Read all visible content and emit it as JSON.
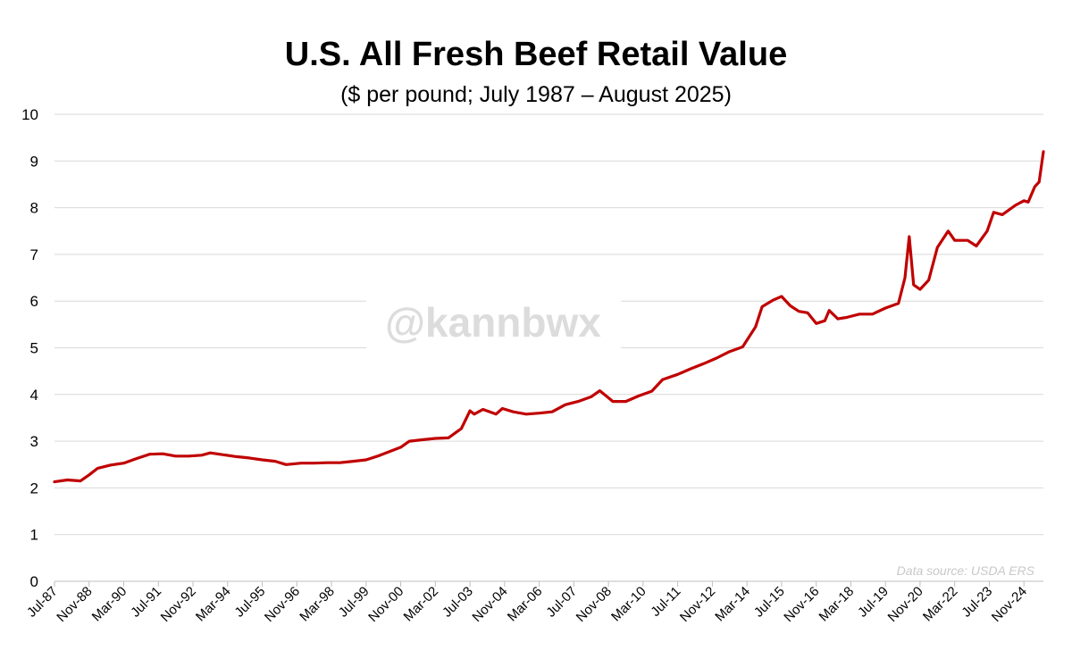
{
  "chart_data": {
    "type": "line",
    "title": "U.S. All Fresh Beef Retail Value",
    "subtitle": "($ per pound; July 1987 – August 2025)",
    "xlabel": "",
    "ylabel": "",
    "ylim": [
      0,
      10
    ],
    "yticks": [
      0,
      1,
      2,
      3,
      4,
      5,
      6,
      7,
      8,
      9,
      10
    ],
    "grid": true,
    "x_tick_labels": [
      "Jul-87",
      "Nov-88",
      "Mar-90",
      "Jul-91",
      "Nov-92",
      "Mar-94",
      "Jul-95",
      "Nov-96",
      "Mar-98",
      "Jul-99",
      "Nov-00",
      "Mar-02",
      "Jul-03",
      "Nov-04",
      "Mar-06",
      "Jul-07",
      "Nov-08",
      "Mar-10",
      "Jul-11",
      "Nov-12",
      "Mar-14",
      "Jul-15",
      "Nov-16",
      "Mar-18",
      "Jul-19",
      "Nov-20",
      "Mar-22",
      "Jul-23",
      "Nov-24"
    ],
    "x_start": "Jul-87",
    "x_end": "Aug-25",
    "series": [
      {
        "color": "#c00000",
        "points": [
          [
            "Jul-87",
            2.13
          ],
          [
            "Jan-88",
            2.17
          ],
          [
            "Jul-88",
            2.15
          ],
          [
            "Nov-88",
            2.28
          ],
          [
            "Mar-89",
            2.42
          ],
          [
            "Sep-89",
            2.49
          ],
          [
            "Mar-90",
            2.53
          ],
          [
            "Sep-90",
            2.63
          ],
          [
            "Mar-91",
            2.72
          ],
          [
            "Sep-91",
            2.73
          ],
          [
            "Mar-92",
            2.68
          ],
          [
            "Sep-92",
            2.68
          ],
          [
            "Mar-93",
            2.7
          ],
          [
            "Jul-93",
            2.75
          ],
          [
            "Jan-94",
            2.71
          ],
          [
            "Jul-94",
            2.67
          ],
          [
            "Jan-95",
            2.64
          ],
          [
            "Jul-95",
            2.6
          ],
          [
            "Jan-96",
            2.57
          ],
          [
            "Jun-96",
            2.5
          ],
          [
            "Jan-97",
            2.53
          ],
          [
            "Jul-97",
            2.53
          ],
          [
            "Jan-98",
            2.54
          ],
          [
            "Jul-98",
            2.54
          ],
          [
            "Jan-99",
            2.57
          ],
          [
            "Jul-99",
            2.6
          ],
          [
            "Jan-00",
            2.69
          ],
          [
            "Jul-00",
            2.8
          ],
          [
            "Nov-00",
            2.87
          ],
          [
            "Mar-01",
            3.0
          ],
          [
            "Sep-01",
            3.03
          ],
          [
            "Mar-02",
            3.06
          ],
          [
            "Sep-02",
            3.07
          ],
          [
            "Mar-03",
            3.27
          ],
          [
            "Jul-03",
            3.65
          ],
          [
            "Sep-03",
            3.58
          ],
          [
            "Jan-04",
            3.68
          ],
          [
            "Jul-04",
            3.58
          ],
          [
            "Oct-04",
            3.7
          ],
          [
            "Mar-05",
            3.63
          ],
          [
            "Sep-05",
            3.58
          ],
          [
            "Mar-06",
            3.6
          ],
          [
            "Sep-06",
            3.63
          ],
          [
            "Mar-07",
            3.78
          ],
          [
            "Sep-07",
            3.85
          ],
          [
            "Mar-08",
            3.95
          ],
          [
            "Jul-08",
            4.08
          ],
          [
            "Nov-08",
            3.93
          ],
          [
            "Jan-09",
            3.85
          ],
          [
            "Jul-09",
            3.85
          ],
          [
            "Jan-10",
            3.97
          ],
          [
            "Jul-10",
            4.07
          ],
          [
            "Dec-10",
            4.32
          ],
          [
            "Jul-11",
            4.43
          ],
          [
            "Jan-12",
            4.55
          ],
          [
            "Jul-12",
            4.66
          ],
          [
            "Jan-13",
            4.78
          ],
          [
            "Jul-13",
            4.92
          ],
          [
            "Jan-14",
            5.02
          ],
          [
            "Jul-14",
            5.45
          ],
          [
            "Oct-14",
            5.88
          ],
          [
            "Mar-15",
            6.02
          ],
          [
            "Jul-15",
            6.1
          ],
          [
            "Nov-15",
            5.9
          ],
          [
            "Mar-16",
            5.78
          ],
          [
            "Jul-16",
            5.75
          ],
          [
            "Nov-16",
            5.52
          ],
          [
            "Mar-17",
            5.58
          ],
          [
            "May-17",
            5.8
          ],
          [
            "Sep-17",
            5.62
          ],
          [
            "Jan-18",
            5.65
          ],
          [
            "Jul-18",
            5.72
          ],
          [
            "Jan-19",
            5.72
          ],
          [
            "Jul-19",
            5.85
          ],
          [
            "Jan-20",
            5.95
          ],
          [
            "Apr-20",
            6.5
          ],
          [
            "Jun-20",
            7.38
          ],
          [
            "Aug-20",
            6.35
          ],
          [
            "Nov-20",
            6.25
          ],
          [
            "Mar-21",
            6.45
          ],
          [
            "Jul-21",
            7.15
          ],
          [
            "Dec-21",
            7.5
          ],
          [
            "Mar-22",
            7.3
          ],
          [
            "Sep-22",
            7.3
          ],
          [
            "Jan-23",
            7.18
          ],
          [
            "Jun-23",
            7.5
          ],
          [
            "Sep-23",
            7.9
          ],
          [
            "Jan-24",
            7.85
          ],
          [
            "Jul-24",
            8.05
          ],
          [
            "Nov-24",
            8.15
          ],
          [
            "Jan-25",
            8.12
          ],
          [
            "Apr-25",
            8.45
          ],
          [
            "Jun-25",
            8.55
          ],
          [
            "Aug-25",
            9.2
          ]
        ]
      }
    ],
    "watermark": "@kannbwx",
    "source_note": "Data source: USDA ERS"
  }
}
